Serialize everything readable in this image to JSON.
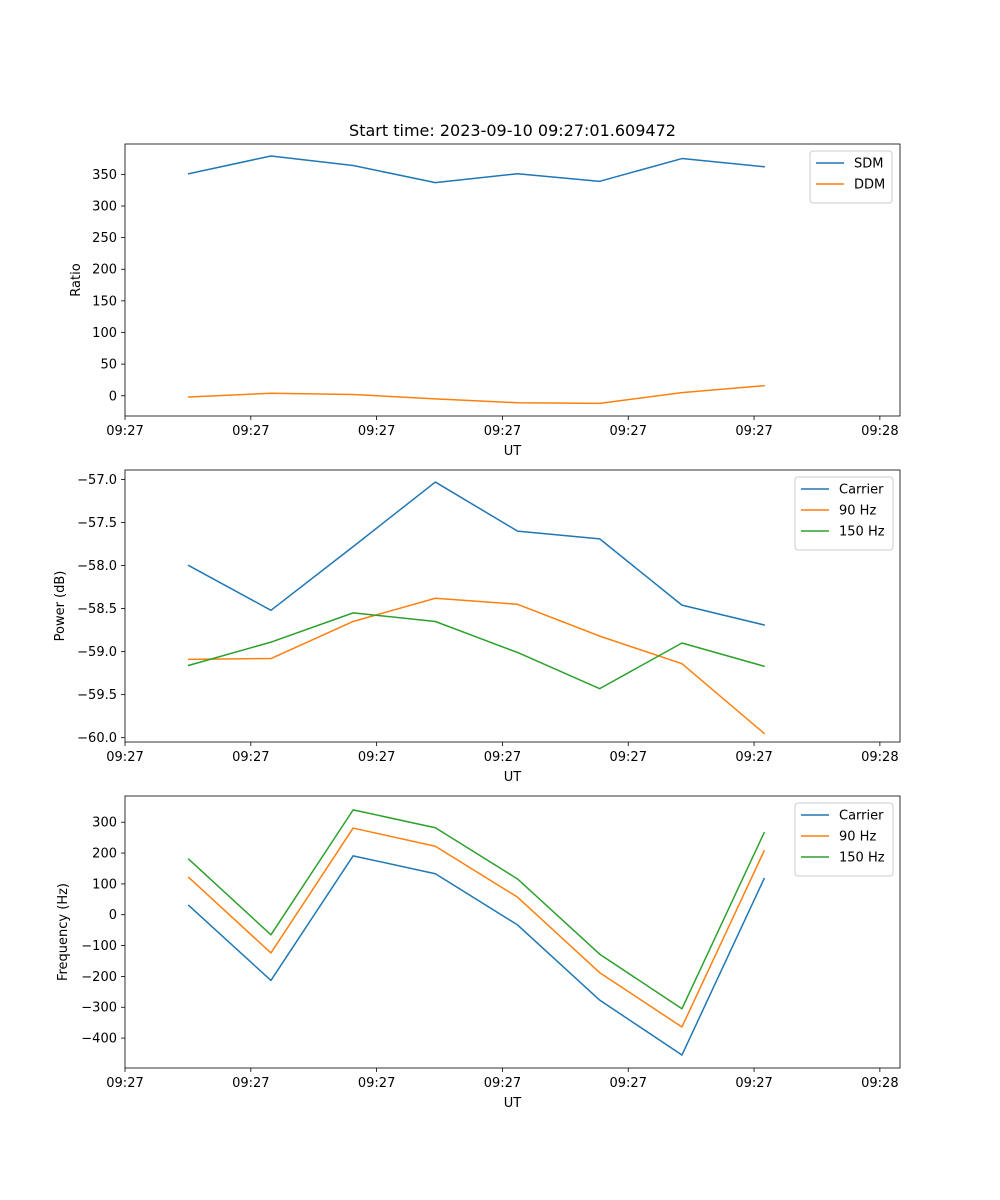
{
  "figure": {
    "title": "Start time: 2023-09-10 09:27:01.609472"
  },
  "chart_data": [
    {
      "type": "line",
      "title": "Start time: 2023-09-10 09:27:01.609472",
      "xlabel": "UT",
      "ylabel": "Ratio",
      "xlim": [
        -0.38,
        4.24
      ],
      "ylim": [
        -32,
        398
      ],
      "x_ticks": [
        {
          "value": -0.38,
          "label": "09:27"
        },
        {
          "value": 0.37,
          "label": "09:27"
        },
        {
          "value": 1.12,
          "label": "09:27"
        },
        {
          "value": 1.87,
          "label": "09:27"
        },
        {
          "value": 2.62,
          "label": "09:27"
        },
        {
          "value": 3.37,
          "label": "09:27"
        },
        {
          "value": 4.12,
          "label": "09:28"
        }
      ],
      "y_ticks": [
        {
          "value": 0,
          "label": "0"
        },
        {
          "value": 50,
          "label": "50"
        },
        {
          "value": 100,
          "label": "100"
        },
        {
          "value": 150,
          "label": "150"
        },
        {
          "value": 200,
          "label": "200"
        },
        {
          "value": 250,
          "label": "250"
        },
        {
          "value": 300,
          "label": "300"
        },
        {
          "value": 350,
          "label": "350"
        }
      ],
      "legend_position": "upper-right",
      "x": [
        0,
        0.49,
        0.98,
        1.47,
        1.96,
        2.45,
        2.94,
        3.43
      ],
      "series": [
        {
          "name": "SDM",
          "color": "#1f77b4",
          "values": [
            351,
            379,
            364,
            337,
            351,
            339,
            375,
            362
          ]
        },
        {
          "name": "DDM",
          "color": "#ff7f0e",
          "values": [
            -2,
            4,
            2,
            -5,
            -11,
            -12,
            5,
            16
          ]
        }
      ]
    },
    {
      "type": "line",
      "xlabel": "UT",
      "ylabel": "Power (dB)",
      "xlim": [
        -0.38,
        4.24
      ],
      "ylim": [
        -60.05,
        -56.89
      ],
      "x_ticks": [
        {
          "value": -0.38,
          "label": "09:27"
        },
        {
          "value": 0.37,
          "label": "09:27"
        },
        {
          "value": 1.12,
          "label": "09:27"
        },
        {
          "value": 1.87,
          "label": "09:27"
        },
        {
          "value": 2.62,
          "label": "09:27"
        },
        {
          "value": 3.37,
          "label": "09:27"
        },
        {
          "value": 4.12,
          "label": "09:28"
        }
      ],
      "y_ticks": [
        {
          "value": -57.0,
          "label": "−57.0"
        },
        {
          "value": -57.5,
          "label": "−57.5"
        },
        {
          "value": -58.0,
          "label": "−58.0"
        },
        {
          "value": -58.5,
          "label": "−58.5"
        },
        {
          "value": -59.0,
          "label": "−59.0"
        },
        {
          "value": -59.5,
          "label": "−59.5"
        },
        {
          "value": -60.0,
          "label": "−60.0"
        }
      ],
      "legend_position": "upper-right",
      "x": [
        0,
        0.49,
        0.98,
        1.47,
        1.96,
        2.45,
        2.94,
        3.43
      ],
      "series": [
        {
          "name": "Carrier",
          "color": "#1f77b4",
          "values": [
            -58.0,
            -58.52,
            -57.78,
            -57.03,
            -57.6,
            -57.69,
            -58.46,
            -58.69
          ]
        },
        {
          "name": "90 Hz",
          "color": "#ff7f0e",
          "values": [
            -59.09,
            -59.08,
            -58.65,
            -58.38,
            -58.45,
            -58.82,
            -59.14,
            -59.95
          ]
        },
        {
          "name": "150 Hz",
          "color": "#2ca02c",
          "values": [
            -59.16,
            -58.89,
            -58.55,
            -58.65,
            -59.01,
            -59.43,
            -58.9,
            -59.17
          ]
        }
      ]
    },
    {
      "type": "line",
      "xlabel": "UT",
      "ylabel": "Frequency (Hz)",
      "xlim": [
        -0.38,
        4.24
      ],
      "ylim": [
        -497,
        385
      ],
      "x_ticks": [
        {
          "value": -0.38,
          "label": "09:27"
        },
        {
          "value": 0.37,
          "label": "09:27"
        },
        {
          "value": 1.12,
          "label": "09:27"
        },
        {
          "value": 1.87,
          "label": "09:27"
        },
        {
          "value": 2.62,
          "label": "09:27"
        },
        {
          "value": 3.37,
          "label": "09:27"
        },
        {
          "value": 4.12,
          "label": "09:28"
        }
      ],
      "y_ticks": [
        {
          "value": 300,
          "label": "300"
        },
        {
          "value": 200,
          "label": "200"
        },
        {
          "value": 100,
          "label": "100"
        },
        {
          "value": 0,
          "label": "0"
        },
        {
          "value": -100,
          "label": "−100"
        },
        {
          "value": -200,
          "label": "−200"
        },
        {
          "value": -300,
          "label": "−300"
        },
        {
          "value": -400,
          "label": "−400"
        }
      ],
      "legend_position": "upper-right",
      "x": [
        0,
        0.49,
        0.98,
        1.47,
        1.96,
        2.45,
        2.94,
        3.43
      ],
      "series": [
        {
          "name": "Carrier",
          "color": "#1f77b4",
          "values": [
            30,
            -213,
            191,
            133,
            -33,
            -277,
            -455,
            117
          ]
        },
        {
          "name": "90 Hz",
          "color": "#ff7f0e",
          "values": [
            121,
            -124,
            281,
            222,
            57,
            -188,
            -364,
            207
          ]
        },
        {
          "name": "150 Hz",
          "color": "#2ca02c",
          "values": [
            180,
            -65,
            340,
            282,
            116,
            -128,
            -305,
            266
          ]
        }
      ]
    }
  ]
}
